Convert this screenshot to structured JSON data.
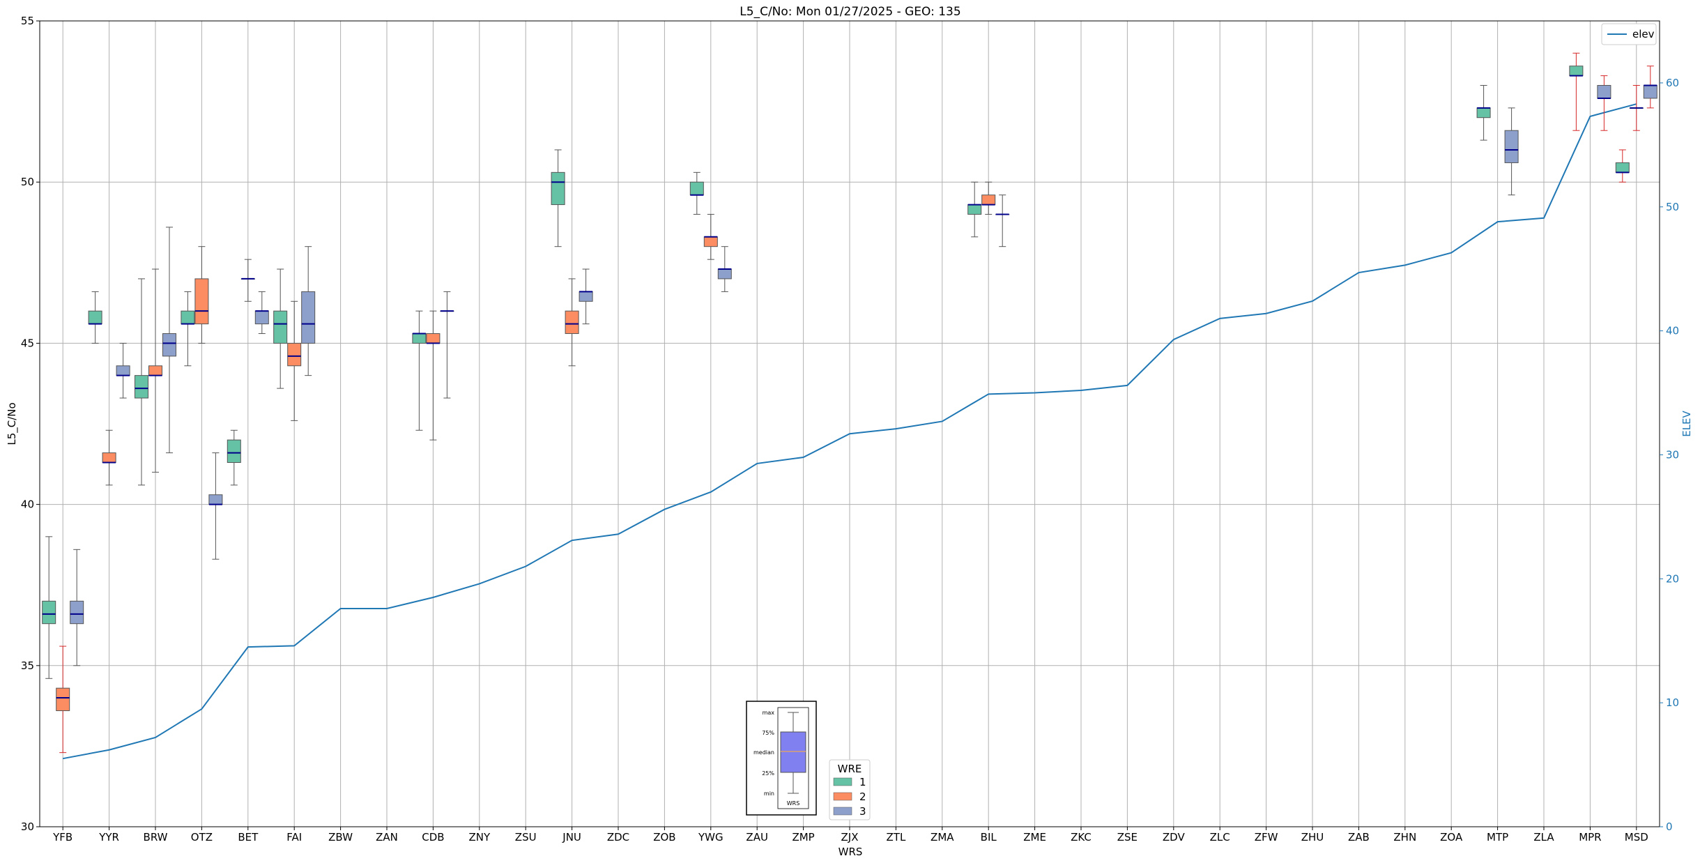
{
  "chart_data": {
    "type": "box",
    "title": "L5_C/No: Mon 01/27/2025 - GEO: 135",
    "xlabel": "WRS",
    "ylabel": "L5_C/No",
    "y2label": "ELEV",
    "ylim": [
      30,
      55
    ],
    "y2lim": [
      0,
      65
    ],
    "yticks": [
      30,
      35,
      40,
      45,
      50,
      55
    ],
    "y2ticks": [
      0,
      10,
      20,
      30,
      40,
      50,
      60
    ],
    "grid": true,
    "categories": [
      "YFB",
      "YYR",
      "BRW",
      "OTZ",
      "BET",
      "FAI",
      "ZBW",
      "ZAN",
      "CDB",
      "ZNY",
      "ZSU",
      "JNU",
      "ZDC",
      "ZOB",
      "YWG",
      "ZAU",
      "ZMP",
      "ZJX",
      "ZTL",
      "ZMA",
      "BIL",
      "ZME",
      "ZKC",
      "ZSE",
      "ZDV",
      "ZLC",
      "ZFW",
      "ZHU",
      "ZAB",
      "ZHN",
      "ZOA",
      "MTP",
      "ZLA",
      "MPR",
      "MSD"
    ],
    "elev": {
      "name": "elev",
      "color": "#1f77b4",
      "values": [
        5.5,
        6.2,
        7.2,
        9.5,
        14.5,
        14.6,
        17.6,
        17.6,
        18.5,
        19.6,
        21.0,
        23.1,
        23.6,
        25.6,
        27.0,
        29.3,
        29.8,
        31.7,
        32.1,
        32.7,
        34.9,
        35.0,
        35.2,
        35.6,
        39.3,
        41.0,
        41.4,
        42.4,
        44.7,
        45.3,
        46.3,
        48.8,
        49.1,
        57.3,
        58.3
      ]
    },
    "wre_colors": {
      "1": "#66c2a5",
      "2": "#fc8d62",
      "3": "#8da0cb"
    },
    "boxes": [
      {
        "wrs": "YFB",
        "wre": 1,
        "min": 34.6,
        "q1": 36.3,
        "median": 36.6,
        "q3": 37.0,
        "max": 39.0,
        "whisker_color": "#555555"
      },
      {
        "wrs": "YFB",
        "wre": 2,
        "min": 32.3,
        "q1": 33.6,
        "median": 34.0,
        "q3": 34.3,
        "max": 35.6,
        "whisker_color": "#d62728"
      },
      {
        "wrs": "YFB",
        "wre": 3,
        "min": 35.0,
        "q1": 36.3,
        "median": 36.6,
        "q3": 37.0,
        "max": 38.6,
        "whisker_color": "#555555"
      },
      {
        "wrs": "YYR",
        "wre": 1,
        "min": 45.0,
        "q1": 45.6,
        "median": 45.6,
        "q3": 46.0,
        "max": 46.6,
        "whisker_color": "#555555"
      },
      {
        "wrs": "YYR",
        "wre": 2,
        "min": 40.6,
        "q1": 41.3,
        "median": 41.3,
        "q3": 41.6,
        "max": 42.3,
        "whisker_color": "#555555"
      },
      {
        "wrs": "YYR",
        "wre": 3,
        "min": 43.3,
        "q1": 44.0,
        "median": 44.0,
        "q3": 44.3,
        "max": 45.0,
        "whisker_color": "#555555"
      },
      {
        "wrs": "BRW",
        "wre": 1,
        "min": 40.6,
        "q1": 43.3,
        "median": 43.6,
        "q3": 44.0,
        "max": 47.0,
        "whisker_color": "#555555"
      },
      {
        "wrs": "BRW",
        "wre": 2,
        "min": 41.0,
        "q1": 44.0,
        "median": 44.0,
        "q3": 44.3,
        "max": 47.3,
        "whisker_color": "#555555"
      },
      {
        "wrs": "BRW",
        "wre": 3,
        "min": 41.6,
        "q1": 44.6,
        "median": 45.0,
        "q3": 45.3,
        "max": 48.6,
        "whisker_color": "#555555"
      },
      {
        "wrs": "OTZ",
        "wre": 1,
        "min": 44.3,
        "q1": 45.6,
        "median": 45.6,
        "q3": 46.0,
        "max": 46.6,
        "whisker_color": "#555555"
      },
      {
        "wrs": "OTZ",
        "wre": 2,
        "min": 45.0,
        "q1": 45.6,
        "median": 46.0,
        "q3": 47.0,
        "max": 48.0,
        "whisker_color": "#555555"
      },
      {
        "wrs": "OTZ",
        "wre": 3,
        "min": 38.3,
        "q1": 40.0,
        "median": 40.0,
        "q3": 40.3,
        "max": 41.6,
        "whisker_color": "#555555"
      },
      {
        "wrs": "BET",
        "wre": 1,
        "min": 40.6,
        "q1": 41.3,
        "median": 41.6,
        "q3": 42.0,
        "max": 42.3,
        "whisker_color": "#555555"
      },
      {
        "wrs": "BET",
        "wre": 2,
        "min": 46.3,
        "q1": 47.0,
        "median": 47.0,
        "q3": 47.0,
        "max": 47.6,
        "whisker_color": "#555555"
      },
      {
        "wrs": "BET",
        "wre": 3,
        "min": 45.3,
        "q1": 45.6,
        "median": 46.0,
        "q3": 46.0,
        "max": 46.6,
        "whisker_color": "#555555"
      },
      {
        "wrs": "FAI",
        "wre": 1,
        "min": 43.6,
        "q1": 45.0,
        "median": 45.6,
        "q3": 46.0,
        "max": 47.3,
        "whisker_color": "#555555"
      },
      {
        "wrs": "FAI",
        "wre": 2,
        "min": 42.6,
        "q1": 44.3,
        "median": 44.6,
        "q3": 45.0,
        "max": 46.3,
        "whisker_color": "#555555"
      },
      {
        "wrs": "FAI",
        "wre": 3,
        "min": 44.0,
        "q1": 45.0,
        "median": 45.6,
        "q3": 46.6,
        "max": 48.0,
        "whisker_color": "#555555"
      },
      {
        "wrs": "CDB",
        "wre": 1,
        "min": 42.3,
        "q1": 45.0,
        "median": 45.3,
        "q3": 45.3,
        "max": 46.0,
        "whisker_color": "#555555"
      },
      {
        "wrs": "CDB",
        "wre": 2,
        "min": 42.0,
        "q1": 45.0,
        "median": 45.0,
        "q3": 45.3,
        "max": 46.0,
        "whisker_color": "#555555"
      },
      {
        "wrs": "CDB",
        "wre": 3,
        "min": 43.3,
        "q1": 46.0,
        "median": 46.0,
        "q3": 46.0,
        "max": 46.6,
        "whisker_color": "#555555"
      },
      {
        "wrs": "JNU",
        "wre": 1,
        "min": 48.0,
        "q1": 49.3,
        "median": 50.0,
        "q3": 50.3,
        "max": 51.0,
        "whisker_color": "#555555"
      },
      {
        "wrs": "JNU",
        "wre": 2,
        "min": 44.3,
        "q1": 45.3,
        "median": 45.6,
        "q3": 46.0,
        "max": 47.0,
        "whisker_color": "#555555"
      },
      {
        "wrs": "JNU",
        "wre": 3,
        "min": 45.6,
        "q1": 46.3,
        "median": 46.6,
        "q3": 46.6,
        "max": 47.3,
        "whisker_color": "#555555"
      },
      {
        "wrs": "YWG",
        "wre": 1,
        "min": 49.0,
        "q1": 49.6,
        "median": 49.6,
        "q3": 50.0,
        "max": 50.3,
        "whisker_color": "#555555"
      },
      {
        "wrs": "YWG",
        "wre": 2,
        "min": 47.6,
        "q1": 48.0,
        "median": 48.3,
        "q3": 48.3,
        "max": 49.0,
        "whisker_color": "#555555"
      },
      {
        "wrs": "YWG",
        "wre": 3,
        "min": 46.6,
        "q1": 47.0,
        "median": 47.3,
        "q3": 47.3,
        "max": 48.0,
        "whisker_color": "#555555"
      },
      {
        "wrs": "BIL",
        "wre": 1,
        "min": 48.3,
        "q1": 49.0,
        "median": 49.3,
        "q3": 49.3,
        "max": 50.0,
        "whisker_color": "#555555"
      },
      {
        "wrs": "BIL",
        "wre": 2,
        "min": 49.0,
        "q1": 49.3,
        "median": 49.3,
        "q3": 49.6,
        "max": 50.0,
        "whisker_color": "#555555"
      },
      {
        "wrs": "BIL",
        "wre": 3,
        "min": 48.0,
        "q1": 49.0,
        "median": 49.0,
        "q3": 49.0,
        "max": 49.6,
        "whisker_color": "#555555"
      },
      {
        "wrs": "MTP",
        "wre": 1,
        "min": 51.3,
        "q1": 52.0,
        "median": 52.3,
        "q3": 52.3,
        "max": 53.0,
        "whisker_color": "#555555"
      },
      {
        "wrs": "MTP",
        "wre": 3,
        "min": 49.6,
        "q1": 50.6,
        "median": 51.0,
        "q3": 51.6,
        "max": 52.3,
        "whisker_color": "#555555"
      },
      {
        "wrs": "MPR",
        "wre": 1,
        "min": 51.6,
        "q1": 53.3,
        "median": 53.3,
        "q3": 53.6,
        "max": 54.0,
        "whisker_color": "#d62728"
      },
      {
        "wrs": "MPR",
        "wre": 3,
        "min": 51.6,
        "q1": 52.6,
        "median": 52.6,
        "q3": 53.0,
        "max": 53.3,
        "whisker_color": "#d62728"
      },
      {
        "wrs": "MSD",
        "wre": 1,
        "min": 50.0,
        "q1": 50.3,
        "median": 50.3,
        "q3": 50.6,
        "max": 51.0,
        "whisker_color": "#d62728"
      },
      {
        "wrs": "MSD",
        "wre": 2,
        "min": 51.6,
        "q1": 52.3,
        "median": 52.3,
        "q3": 52.3,
        "max": 53.0,
        "whisker_color": "#d62728"
      },
      {
        "wrs": "MSD",
        "wre": 3,
        "min": 52.3,
        "q1": 52.6,
        "median": 53.0,
        "q3": 53.0,
        "max": 53.6,
        "whisker_color": "#d62728"
      }
    ],
    "legend_elev": {
      "label": "elev",
      "placement": "top-right"
    },
    "legend_wre": {
      "title": "WRE",
      "labels": [
        "1",
        "2",
        "3"
      ],
      "placement": "bottom-center"
    },
    "key_box": {
      "labels": [
        "max",
        "75%",
        "median",
        "25%",
        "min"
      ],
      "xlabel": "WRS",
      "fill": "#8080f0"
    }
  }
}
